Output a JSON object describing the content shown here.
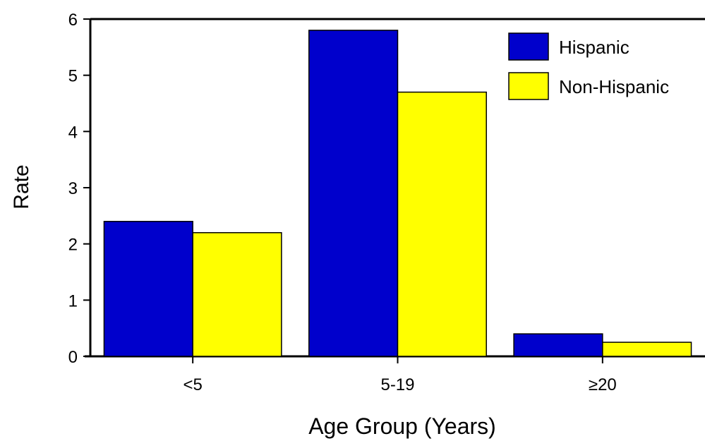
{
  "chart_data": {
    "type": "bar",
    "title": "",
    "xlabel": "Age Group (Years)",
    "ylabel": "Rate",
    "categories": [
      "<5",
      "5-19",
      "≥20"
    ],
    "series": [
      {
        "name": "Hispanic",
        "values": [
          2.4,
          5.8,
          0.4
        ],
        "color": "#0000cc"
      },
      {
        "name": "Non-Hispanic",
        "values": [
          2.2,
          4.7,
          0.25
        ],
        "color": "#ffff00"
      }
    ],
    "ylim": [
      0,
      6
    ],
    "yticks": [
      0,
      1,
      2,
      3,
      4,
      5,
      6
    ],
    "grid": false,
    "legend_position": "top-right"
  }
}
